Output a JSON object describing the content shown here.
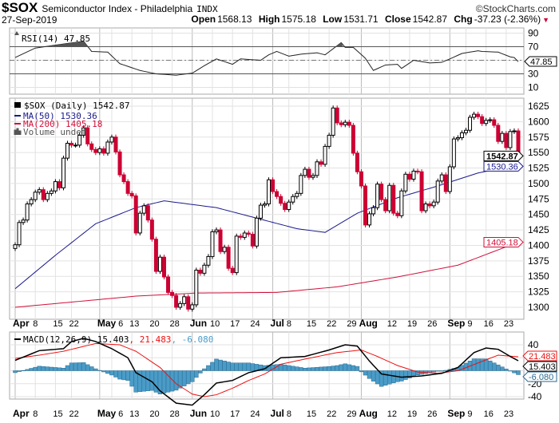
{
  "header": {
    "symbol": "$SOX",
    "name": "Semiconductor Index - Philadelphia",
    "exchange": "INDX",
    "copyright": "©StockCharts.com",
    "date": "27-Sep-2019",
    "open_label": "Open",
    "open": "1568.13",
    "high_label": "High",
    "high": "1575.18",
    "low_label": "Low",
    "low": "1531.71",
    "close_label": "Close",
    "close": "1542.87",
    "chg_label": "Chg",
    "chg": "-37.23 (-2.36%)",
    "chg_icon": "triangle-down-icon",
    "colors": {
      "down": "#cc0033",
      "up": "#000000",
      "ma50": "#1a1a8c",
      "ma200": "#d0103a",
      "hist": "#4a9cc8"
    }
  },
  "chart_data": [
    {
      "type": "line",
      "panel": "RSI",
      "title": "RSI(14) 47.85",
      "current_tag": "47.85",
      "ylim": [
        0,
        100
      ],
      "yticks": [
        "90",
        "70",
        "30",
        "10"
      ],
      "levels": [
        70,
        30
      ],
      "midline": 50,
      "series_points": [
        [
          0,
          54
        ],
        [
          5,
          68
        ],
        [
          12,
          74
        ],
        [
          17,
          78
        ],
        [
          19,
          63
        ],
        [
          23,
          62
        ],
        [
          26,
          45
        ],
        [
          31,
          35
        ],
        [
          35,
          30
        ],
        [
          40,
          28
        ],
        [
          44,
          31
        ],
        [
          47,
          42
        ],
        [
          50,
          52
        ],
        [
          54,
          44
        ],
        [
          56,
          52
        ],
        [
          61,
          50
        ],
        [
          63,
          58
        ],
        [
          65,
          63
        ],
        [
          68,
          56
        ],
        [
          71,
          59
        ],
        [
          75,
          61
        ],
        [
          77,
          58
        ],
        [
          81,
          76
        ],
        [
          82,
          69
        ],
        [
          84,
          69
        ],
        [
          87,
          53
        ],
        [
          89,
          35
        ],
        [
          92,
          43
        ],
        [
          95,
          44
        ],
        [
          96,
          38
        ],
        [
          99,
          50
        ],
        [
          103,
          46
        ],
        [
          106,
          47
        ],
        [
          108,
          52
        ],
        [
          111,
          60
        ],
        [
          115,
          64
        ],
        [
          116,
          63
        ],
        [
          120,
          62
        ],
        [
          123,
          55
        ],
        [
          124,
          54
        ],
        [
          125,
          47.85
        ]
      ]
    },
    {
      "type": "candlestick",
      "panel": "price",
      "title": "$SOX (Daily) 1542.87",
      "legend": [
        "MA(50) 1530.36",
        "MA(200) 1405.18",
        "Volume undef"
      ],
      "ylim": [
        1280,
        1640
      ],
      "yticks": [
        "1625",
        "1600",
        "1575",
        "1550",
        "1525",
        "1500",
        "1475",
        "1450",
        "1425",
        "1400",
        "1375",
        "1350",
        "1325",
        "1300"
      ],
      "tags": {
        "close": "1542.87",
        "ma50": "1530.36",
        "ma200": "1405.18"
      },
      "first_open": 1395,
      "closes": [
        1401,
        1437,
        1441,
        1467,
        1474,
        1486,
        1490,
        1474,
        1484,
        1488,
        1503,
        1493,
        1541,
        1565,
        1562,
        1562,
        1578,
        1590,
        1564,
        1555,
        1550,
        1556,
        1549,
        1567,
        1575,
        1551,
        1514,
        1503,
        1484,
        1480,
        1420,
        1452,
        1464,
        1441,
        1410,
        1358,
        1381,
        1349,
        1324,
        1319,
        1300,
        1306,
        1317,
        1297,
        1304,
        1360,
        1355,
        1368,
        1382,
        1422,
        1425,
        1390,
        1397,
        1363,
        1356,
        1415,
        1413,
        1420,
        1418,
        1399,
        1444,
        1465,
        1467,
        1506,
        1487,
        1479,
        1468,
        1458,
        1470,
        1479,
        1484,
        1513,
        1523,
        1510,
        1513,
        1535,
        1531,
        1560,
        1578,
        1622,
        1598,
        1595,
        1599,
        1594,
        1549,
        1519,
        1496,
        1433,
        1451,
        1461,
        1499,
        1474,
        1456,
        1497,
        1452,
        1448,
        1488,
        1515,
        1507,
        1520,
        1519,
        1456,
        1467,
        1464,
        1470,
        1504,
        1514,
        1487,
        1527,
        1572,
        1574,
        1582,
        1586,
        1607,
        1612,
        1608,
        1597,
        1602,
        1603,
        1594,
        1568,
        1581,
        1558,
        1584,
        1585,
        1542.87
      ],
      "ma50_points": [
        [
          0,
          1330
        ],
        [
          10,
          1384
        ],
        [
          20,
          1435
        ],
        [
          30,
          1461
        ],
        [
          37,
          1472
        ],
        [
          50,
          1461
        ],
        [
          60,
          1444
        ],
        [
          70,
          1427
        ],
        [
          77,
          1421
        ],
        [
          85,
          1452
        ],
        [
          95,
          1477
        ],
        [
          105,
          1496
        ],
        [
          115,
          1517
        ],
        [
          125,
          1530.36
        ]
      ],
      "ma200_points": [
        [
          0,
          1300
        ],
        [
          30,
          1318
        ],
        [
          45,
          1323
        ],
        [
          65,
          1324
        ],
        [
          80,
          1333
        ],
        [
          95,
          1349
        ],
        [
          110,
          1368
        ],
        [
          125,
          1405.18
        ]
      ]
    },
    {
      "type": "line",
      "panel": "MACD",
      "title_prefix": "MACD(12,26,9) 15.403",
      "signal_value": ", 21.483",
      "hist_value": ", -6.080",
      "tags": {
        "signal": "21.483",
        "macd": "15.403",
        "hist": "-6.080"
      },
      "ylim": [
        -50,
        50
      ],
      "yticks": [
        "40",
        "-20",
        "-40"
      ],
      "macd_points": [
        [
          0,
          16
        ],
        [
          6,
          31
        ],
        [
          12,
          34
        ],
        [
          14,
          45
        ],
        [
          17,
          50
        ],
        [
          20,
          45
        ],
        [
          24,
          34
        ],
        [
          28,
          20
        ],
        [
          30,
          -3
        ],
        [
          34,
          -17
        ],
        [
          36,
          -31
        ],
        [
          40,
          -50
        ],
        [
          44,
          -53
        ],
        [
          47,
          -37
        ],
        [
          50,
          -19
        ],
        [
          54,
          -15
        ],
        [
          58,
          -3
        ],
        [
          62,
          3
        ],
        [
          66,
          20
        ],
        [
          72,
          22
        ],
        [
          78,
          32
        ],
        [
          82,
          40
        ],
        [
          85,
          38
        ],
        [
          88,
          15
        ],
        [
          91,
          -5
        ],
        [
          96,
          -10
        ],
        [
          101,
          -8
        ],
        [
          106,
          -4
        ],
        [
          110,
          5
        ],
        [
          114,
          28
        ],
        [
          117,
          35
        ],
        [
          120,
          33
        ],
        [
          123,
          22
        ],
        [
          125,
          15.403
        ]
      ],
      "signal_points": [
        [
          0,
          19
        ],
        [
          6,
          24
        ],
        [
          12,
          30
        ],
        [
          20,
          42
        ],
        [
          26,
          40
        ],
        [
          30,
          30
        ],
        [
          36,
          5
        ],
        [
          40,
          -20
        ],
        [
          44,
          -36
        ],
        [
          47,
          -40
        ],
        [
          50,
          -37
        ],
        [
          54,
          -27
        ],
        [
          58,
          -15
        ],
        [
          62,
          -5
        ],
        [
          66,
          10
        ],
        [
          72,
          18
        ],
        [
          80,
          28
        ],
        [
          86,
          32
        ],
        [
          90,
          22
        ],
        [
          95,
          8
        ],
        [
          100,
          -2
        ],
        [
          105,
          -4
        ],
        [
          110,
          0
        ],
        [
          115,
          12
        ],
        [
          120,
          24
        ],
        [
          125,
          21.483
        ]
      ]
    }
  ],
  "xaxis": {
    "labels": [
      {
        "d": 0,
        "t": "Apr",
        "bold": true
      },
      {
        "d": 5,
        "t": "8"
      },
      {
        "d": 10,
        "t": "15"
      },
      {
        "d": 14,
        "t": "22"
      },
      {
        "d": 21,
        "t": "May",
        "bold": true
      },
      {
        "d": 24,
        "t": "6"
      },
      {
        "d": 29,
        "t": "13"
      },
      {
        "d": 34,
        "t": "20"
      },
      {
        "d": 39,
        "t": "28"
      },
      {
        "d": 44,
        "t": "Jun",
        "bold": true
      },
      {
        "d": 49,
        "t": "10"
      },
      {
        "d": 54,
        "t": "17"
      },
      {
        "d": 59,
        "t": "24"
      },
      {
        "d": 64,
        "t": "Jul",
        "bold": true
      },
      {
        "d": 68,
        "t": "8"
      },
      {
        "d": 73,
        "t": "15"
      },
      {
        "d": 78,
        "t": "22"
      },
      {
        "d": 83,
        "t": "29"
      },
      {
        "d": 86,
        "t": "Aug",
        "bold": true
      },
      {
        "d": 93,
        "t": "12"
      },
      {
        "d": 98,
        "t": "19"
      },
      {
        "d": 103,
        "t": "26"
      },
      {
        "d": 108,
        "t": "Sep",
        "bold": true
      },
      {
        "d": 112,
        "t": "9"
      },
      {
        "d": 117,
        "t": "16"
      },
      {
        "d": 122,
        "t": "23"
      }
    ]
  }
}
